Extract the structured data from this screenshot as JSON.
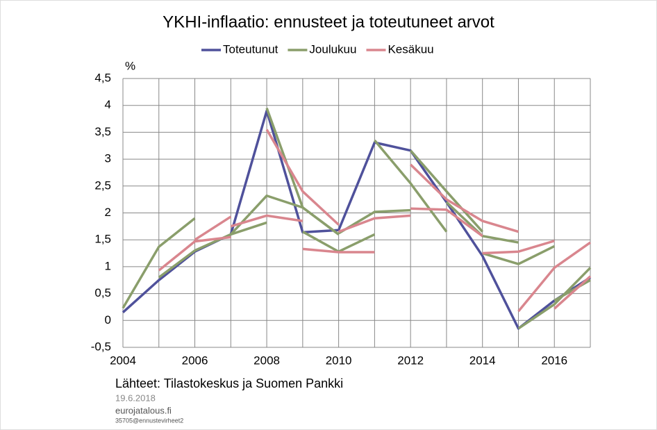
{
  "chart_data": {
    "type": "line",
    "title": "YKHI-inflaatio: ennusteet ja toteutuneet arvot",
    "y_label": "%",
    "source": "Lähteet: Tilastokeskus ja Suomen Pankki",
    "date": "19.6.2018",
    "site": "eurojatalous.fi",
    "code": "35705@ennustevirheet2",
    "x": [
      2004,
      2005,
      2006,
      2007,
      2008,
      2009,
      2010,
      2011,
      2012,
      2013,
      2014,
      2015,
      2016,
      2017
    ],
    "xlim": [
      2004,
      2017
    ],
    "xticks": [
      2004,
      2006,
      2008,
      2010,
      2012,
      2014,
      2016
    ],
    "ylim": [
      -0.5,
      4.5
    ],
    "yticks": [
      {
        "value": -0.5,
        "label": "-0,5"
      },
      0,
      {
        "value": 0.5,
        "label": "0,5"
      },
      1,
      {
        "value": 1.5,
        "label": "1,5"
      },
      2,
      {
        "value": 2.5,
        "label": "2,5"
      },
      3,
      {
        "value": 3.5,
        "label": "3,5"
      },
      4,
      {
        "value": 4.5,
        "label": "4,5"
      }
    ],
    "grid": true,
    "series": [
      {
        "name": "Toteutunut",
        "color": "#4f519b",
        "segments": [
          {
            "x": [
              2004,
              2005,
              2006,
              2007,
              2008,
              2009,
              2010,
              2011,
              2012,
              2013,
              2014,
              2015,
              2016,
              2017
            ],
            "values": [
              0.15,
              0.75,
              1.28,
              1.6,
              3.9,
              1.64,
              1.68,
              3.31,
              3.16,
              2.2,
              1.2,
              -0.15,
              0.37,
              0.8
            ]
          }
        ]
      },
      {
        "name": "Joulukuu",
        "color": "#8a9e6b",
        "segments": [
          {
            "x": [
              2004,
              2005,
              2006
            ],
            "values": [
              0.23,
              1.37,
              1.9
            ]
          },
          {
            "x": [
              2005,
              2006,
              2007
            ],
            "values": [
              0.8,
              1.3,
              1.6
            ]
          },
          {
            "x": [
              2006,
              2007,
              2008
            ],
            "values": [
              1.3,
              1.6,
              1.82
            ]
          },
          {
            "x": [
              2007,
              2008,
              2009,
              2010
            ],
            "values": [
              1.6,
              2.32,
              2.1,
              1.6
            ]
          },
          {
            "x": [
              2008,
              2009,
              2010
            ],
            "values": [
              3.95,
              2.1,
              1.6
            ]
          },
          {
            "x": [
              2009,
              2010,
              2011
            ],
            "values": [
              1.65,
              1.28,
              1.6
            ]
          },
          {
            "x": [
              2010,
              2011,
              2012
            ],
            "values": [
              1.62,
              2.02,
              2.05
            ]
          },
          {
            "x": [
              2011,
              2012,
              2013
            ],
            "values": [
              3.35,
              2.55,
              1.65
            ]
          },
          {
            "x": [
              2012,
              2013,
              2014
            ],
            "values": [
              3.16,
              2.4,
              1.65
            ]
          },
          {
            "x": [
              2013,
              2014,
              2015
            ],
            "values": [
              2.2,
              1.57,
              1.45
            ]
          },
          {
            "x": [
              2014,
              2015,
              2016
            ],
            "values": [
              1.25,
              1.05,
              1.38
            ]
          },
          {
            "x": [
              2015,
              2016,
              2017
            ],
            "values": [
              -0.15,
              0.3,
              0.98
            ]
          },
          {
            "x": [
              2016,
              2017
            ],
            "values": [
              0.37,
              0.75
            ]
          }
        ]
      },
      {
        "name": "Kesäkuu",
        "color": "#d9868e",
        "segments": [
          {
            "x": [
              2005,
              2006,
              2007
            ],
            "values": [
              0.93,
              1.47,
              1.55
            ]
          },
          {
            "x": [
              2006,
              2007
            ],
            "values": [
              1.5,
              1.93
            ]
          },
          {
            "x": [
              2007,
              2008,
              2009
            ],
            "values": [
              1.75,
              1.95,
              1.85
            ]
          },
          {
            "x": [
              2008,
              2009,
              2010
            ],
            "values": [
              3.55,
              2.4,
              1.78
            ]
          },
          {
            "x": [
              2009,
              2010,
              2011
            ],
            "values": [
              1.33,
              1.27,
              1.27
            ]
          },
          {
            "x": [
              2010,
              2011,
              2012
            ],
            "values": [
              1.65,
              1.9,
              1.95
            ]
          },
          {
            "x": [
              2012,
              2013
            ],
            "values": [
              2.9,
              2.25
            ]
          },
          {
            "x": [
              2012,
              2013,
              2014
            ],
            "values": [
              2.08,
              2.06,
              1.57
            ]
          },
          {
            "x": [
              2013,
              2014,
              2015
            ],
            "values": [
              2.25,
              1.85,
              1.65
            ]
          },
          {
            "x": [
              2014,
              2015,
              2016
            ],
            "values": [
              1.25,
              1.28,
              1.48
            ]
          },
          {
            "x": [
              2015,
              2016,
              2017
            ],
            "values": [
              0.17,
              0.98,
              1.45
            ]
          },
          {
            "x": [
              2016,
              2017
            ],
            "values": [
              0.22,
              0.82
            ]
          }
        ]
      }
    ]
  }
}
